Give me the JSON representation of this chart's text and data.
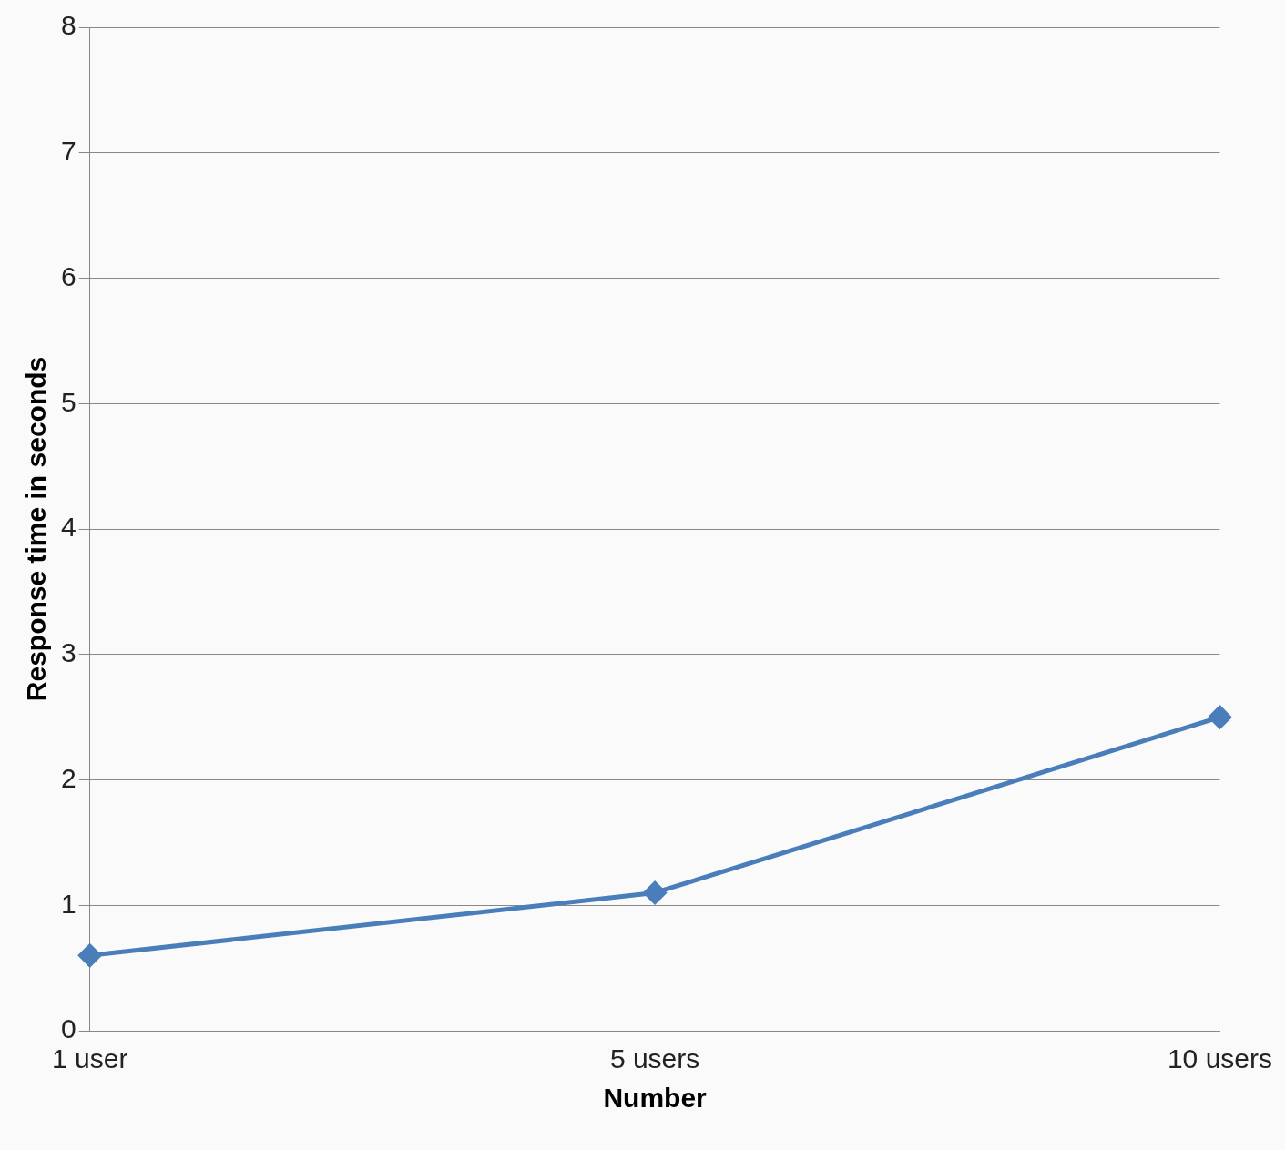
{
  "chart_data": {
    "type": "line",
    "ylabel": "Response time in seconds",
    "xlabel": "Number",
    "categories": [
      "1 user",
      "5 users",
      "10 users"
    ],
    "series": [
      {
        "color": "#4a7ebb",
        "values": [
          0.6,
          1.1,
          2.5
        ]
      }
    ],
    "ylim": [
      0,
      8
    ],
    "yticks": [
      0,
      1,
      2,
      3,
      4,
      5,
      6,
      7,
      8
    ],
    "grid": "y",
    "legend": false,
    "marker": "diamond",
    "line_style": "solid"
  }
}
